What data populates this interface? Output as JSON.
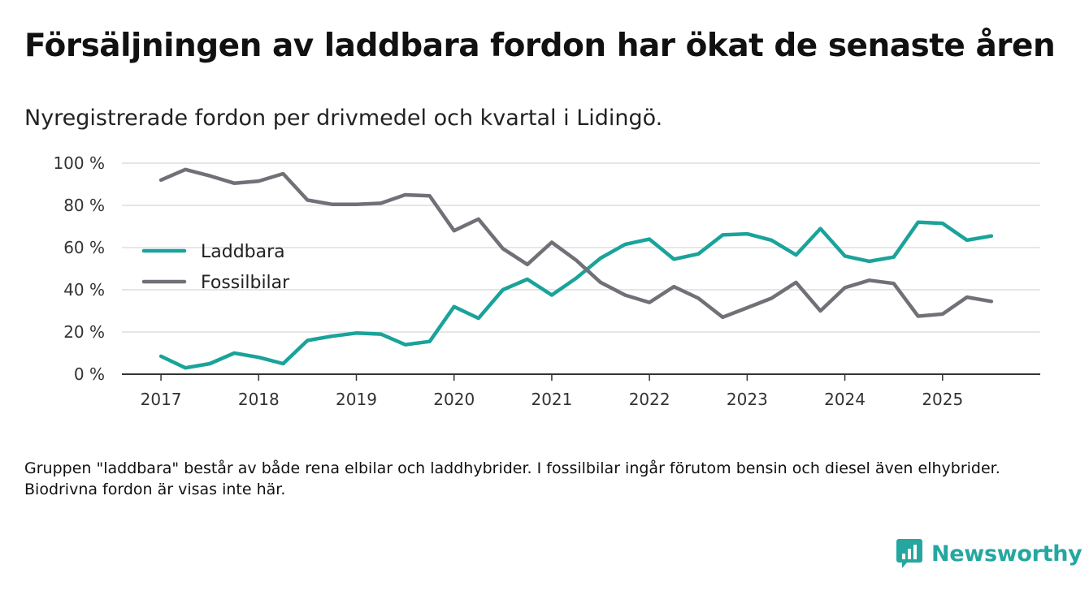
{
  "header": {
    "title": "Försäljningen av laddbara fordon har ökat de senaste åren",
    "subtitle": "Nyregistrerade fordon per drivmedel och kvartal i Lidingö."
  },
  "footnote": "Gruppen \"laddbara\" består av både rena elbilar och laddhybrider. I fossilbilar ingår förutom bensin och diesel även elhybrider. Biodrivna fordon är visas inte här.",
  "brand": {
    "name": "Newsworthy",
    "color": "#25a7a0"
  },
  "chart_data": {
    "type": "line",
    "title": "Försäljningen av laddbara fordon har ökat de senaste åren",
    "subtitle": "Nyregistrerade fordon per drivmedel och kvartal i Lidingö.",
    "xlabel": "",
    "ylabel": "",
    "xlim": [
      2016.6,
      2026.0
    ],
    "ylim": [
      0,
      100
    ],
    "x_ticks": [
      2017,
      2018,
      2019,
      2020,
      2021,
      2022,
      2023,
      2024,
      2025
    ],
    "x_tick_labels": [
      "2017",
      "2018",
      "2019",
      "2020",
      "2021",
      "2022",
      "2023",
      "2024",
      "2025"
    ],
    "y_ticks": [
      0,
      20,
      40,
      60,
      80,
      100
    ],
    "y_tick_labels": [
      "0 %",
      "20 %",
      "40 %",
      "60 %",
      "80 %",
      "100 %"
    ],
    "grid": "horizontal",
    "legend_position": "left-middle",
    "x": [
      2017.0,
      2017.25,
      2017.5,
      2017.75,
      2018.0,
      2018.25,
      2018.5,
      2018.75,
      2019.0,
      2019.25,
      2019.5,
      2019.75,
      2020.0,
      2020.25,
      2020.5,
      2020.75,
      2021.0,
      2021.25,
      2021.5,
      2021.75,
      2022.0,
      2022.25,
      2022.5,
      2022.75,
      2023.0,
      2023.25,
      2023.5,
      2023.75,
      2024.0,
      2024.25,
      2024.5,
      2024.75,
      2025.0,
      2025.25,
      2025.5
    ],
    "series": [
      {
        "name": "Laddbara",
        "color": "#1aa39a",
        "values": [
          8.5,
          3,
          5,
          10,
          8,
          5,
          16,
          18,
          19.5,
          19,
          14,
          15.5,
          32,
          26.5,
          40,
          45,
          37.5,
          45.5,
          55,
          61.5,
          64,
          54.5,
          57,
          66,
          66.5,
          63.5,
          56.5,
          69,
          56,
          53.5,
          55.5,
          72,
          71.5,
          63.5,
          65.5
        ]
      },
      {
        "name": "Fossilbilar",
        "color": "#727077",
        "values": [
          92,
          97,
          94,
          90.5,
          91.5,
          95,
          82.5,
          80.5,
          80.5,
          81,
          85,
          84.5,
          68,
          73.5,
          59.5,
          52,
          62.5,
          54,
          43.5,
          37.5,
          34,
          41.5,
          36,
          27,
          31.5,
          36,
          43.5,
          30,
          41,
          44.5,
          43,
          27.5,
          28.5,
          36.5,
          34.5
        ]
      }
    ]
  }
}
